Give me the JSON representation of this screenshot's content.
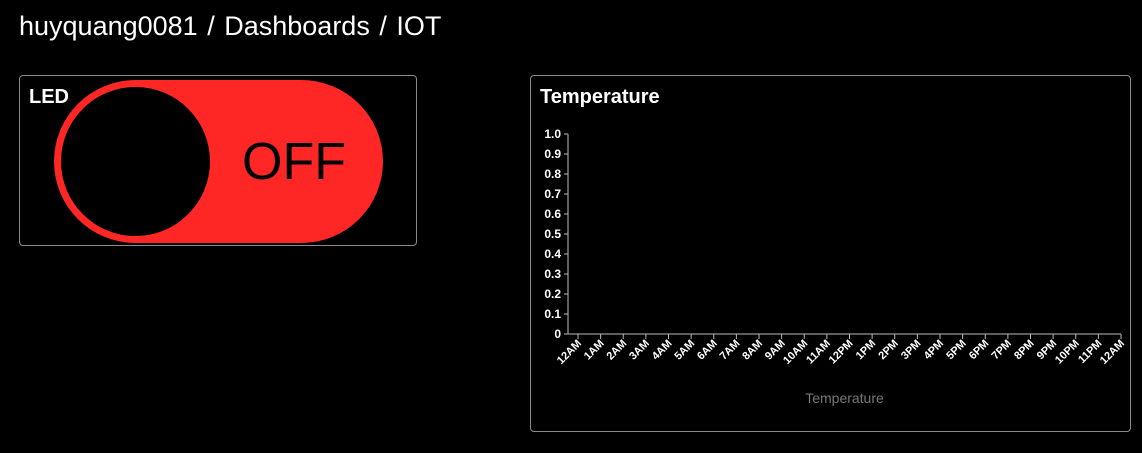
{
  "breadcrumb": {
    "user": "huyquang0081",
    "section": "Dashboards",
    "dashboard": "IOT",
    "separator": "/"
  },
  "colors": {
    "background": "#000000",
    "card_border": "#8a8a8a",
    "toggle_off": "#ff2626",
    "text": "#ffffff",
    "muted_text": "#777777"
  },
  "widgets": {
    "led": {
      "title": "LED",
      "state_label": "OFF",
      "is_on": false
    },
    "temperature": {
      "title": "Temperature"
    }
  },
  "chart_data": {
    "type": "line",
    "title": "Temperature",
    "xlabel": "Temperature",
    "ylabel": "",
    "ylim": [
      0,
      1.0
    ],
    "y_ticks": [
      "0",
      "0.1",
      "0.2",
      "0.3",
      "0.4",
      "0.5",
      "0.6",
      "0.7",
      "0.8",
      "0.9",
      "1.0"
    ],
    "x_ticks": [
      "12AM",
      "1AM",
      "2AM",
      "3AM",
      "4AM",
      "5AM",
      "6AM",
      "7AM",
      "8AM",
      "9AM",
      "10AM",
      "11AM",
      "12PM",
      "1PM",
      "2PM",
      "3PM",
      "4PM",
      "5PM",
      "6PM",
      "7PM",
      "8PM",
      "9PM",
      "10PM",
      "11PM",
      "12AM"
    ],
    "series": [],
    "grid": false
  }
}
